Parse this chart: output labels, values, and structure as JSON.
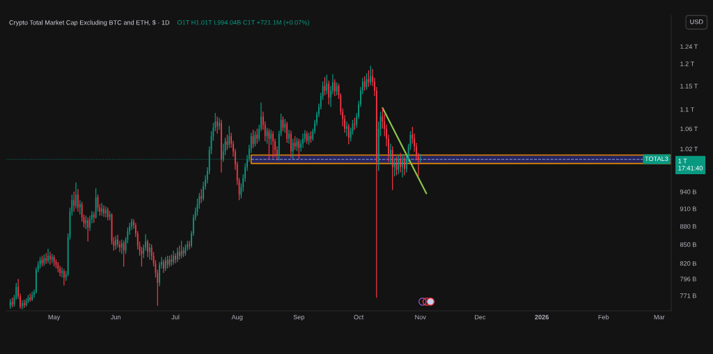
{
  "chart_data": {
    "type": "candlestick",
    "title": "Crypto Total Market Cap Excluding BTC and ETH, $ · 1D",
    "subtitle": "O1T H1.01T L994.04B C1T +721.1M (+0.07%)",
    "x": [
      "2025-04-09",
      "2025-04-10",
      "2025-04-11",
      "2025-04-12",
      "2025-04-13",
      "2025-04-14",
      "2025-04-15",
      "2025-04-16",
      "2025-04-17",
      "2025-04-18",
      "2025-04-19",
      "2025-04-20",
      "2025-04-21",
      "2025-04-22",
      "2025-04-23",
      "2025-04-24",
      "2025-04-25",
      "2025-04-26",
      "2025-04-27",
      "2025-04-28",
      "2025-04-29",
      "2025-04-30",
      "2025-05-01",
      "2025-05-02",
      "2025-05-03",
      "2025-05-04",
      "2025-05-05",
      "2025-05-06",
      "2025-05-07",
      "2025-05-08",
      "2025-05-09",
      "2025-05-10",
      "2025-05-11",
      "2025-05-12",
      "2025-05-13",
      "2025-05-14",
      "2025-05-15",
      "2025-05-16",
      "2025-05-17",
      "2025-05-18",
      "2025-05-19",
      "2025-05-20",
      "2025-05-21",
      "2025-05-22",
      "2025-05-23",
      "2025-05-24",
      "2025-05-25",
      "2025-05-26",
      "2025-05-27",
      "2025-05-28",
      "2025-05-29",
      "2025-05-30",
      "2025-05-31",
      "2025-06-01",
      "2025-06-02",
      "2025-06-03",
      "2025-06-04",
      "2025-06-05",
      "2025-06-06",
      "2025-06-07",
      "2025-06-08",
      "2025-06-09",
      "2025-06-10",
      "2025-06-11",
      "2025-06-12",
      "2025-06-13",
      "2025-06-14",
      "2025-06-15",
      "2025-06-16",
      "2025-06-17",
      "2025-06-18",
      "2025-06-19",
      "2025-06-20",
      "2025-06-21",
      "2025-06-22",
      "2025-06-23",
      "2025-06-24",
      "2025-06-25",
      "2025-06-26",
      "2025-06-27",
      "2025-06-28",
      "2025-06-29",
      "2025-06-30",
      "2025-07-01",
      "2025-07-02",
      "2025-07-03",
      "2025-07-04",
      "2025-07-05",
      "2025-07-06",
      "2025-07-07",
      "2025-07-08",
      "2025-07-09",
      "2025-07-10",
      "2025-07-11",
      "2025-07-12",
      "2025-07-13",
      "2025-07-14",
      "2025-07-15",
      "2025-07-16",
      "2025-07-17",
      "2025-07-18",
      "2025-07-19",
      "2025-07-20",
      "2025-07-21",
      "2025-07-22",
      "2025-07-23",
      "2025-07-24",
      "2025-07-25",
      "2025-07-26",
      "2025-07-27",
      "2025-07-28",
      "2025-07-29",
      "2025-07-30",
      "2025-07-31",
      "2025-08-01",
      "2025-08-02",
      "2025-08-03",
      "2025-08-04",
      "2025-08-05",
      "2025-08-06",
      "2025-08-07",
      "2025-08-08",
      "2025-08-09",
      "2025-08-10",
      "2025-08-11",
      "2025-08-12",
      "2025-08-13",
      "2025-08-14",
      "2025-08-15",
      "2025-08-16",
      "2025-08-17",
      "2025-08-18",
      "2025-08-19",
      "2025-08-20",
      "2025-08-21",
      "2025-08-22",
      "2025-08-23",
      "2025-08-24",
      "2025-08-25",
      "2025-08-26",
      "2025-08-27",
      "2025-08-28",
      "2025-08-29",
      "2025-08-30",
      "2025-08-31",
      "2025-09-01",
      "2025-09-02",
      "2025-09-03",
      "2025-09-04",
      "2025-09-05",
      "2025-09-06",
      "2025-09-07",
      "2025-09-08",
      "2025-09-09",
      "2025-09-10",
      "2025-09-11",
      "2025-09-12",
      "2025-09-13",
      "2025-09-14",
      "2025-09-15",
      "2025-09-16",
      "2025-09-17",
      "2025-09-18",
      "2025-09-19",
      "2025-09-20",
      "2025-09-21",
      "2025-09-22",
      "2025-09-23",
      "2025-09-24",
      "2025-09-25",
      "2025-09-26",
      "2025-09-27",
      "2025-09-28",
      "2025-09-29",
      "2025-09-30",
      "2025-10-01",
      "2025-10-02",
      "2025-10-03",
      "2025-10-04",
      "2025-10-05",
      "2025-10-06",
      "2025-10-07",
      "2025-10-08",
      "2025-10-09",
      "2025-10-10",
      "2025-10-11",
      "2025-10-12",
      "2025-10-13",
      "2025-10-14",
      "2025-10-15",
      "2025-10-16",
      "2025-10-17",
      "2025-10-18",
      "2025-10-19",
      "2025-10-20",
      "2025-10-21",
      "2025-10-22",
      "2025-10-23",
      "2025-10-24",
      "2025-10-25",
      "2025-10-26",
      "2025-10-27",
      "2025-10-28",
      "2025-10-29",
      "2025-10-30",
      "2025-10-31",
      "2025-11-01"
    ],
    "ohlc": [
      [
        756000000000.0,
        766000000000.0,
        752000000000.0,
        762000000000.0
      ],
      [
        762000000000.0,
        768000000000.0,
        754000000000.0,
        758000000000.0
      ],
      [
        758000000000.0,
        772000000000.0,
        755000000000.0,
        768000000000.0
      ],
      [
        768000000000.0,
        790000000000.0,
        765000000000.0,
        784000000000.0
      ],
      [
        784000000000.0,
        796000000000.0,
        766000000000.0,
        770000000000.0
      ],
      [
        770000000000.0,
        774000000000.0,
        752000000000.0,
        755000000000.0
      ],
      [
        755000000000.0,
        764000000000.0,
        751000000000.0,
        760000000000.0
      ],
      [
        760000000000.0,
        765000000000.0,
        753000000000.0,
        757000000000.0
      ],
      [
        757000000000.0,
        767000000000.0,
        755000000000.0,
        763000000000.0
      ],
      [
        763000000000.0,
        772000000000.0,
        760000000000.0,
        768000000000.0
      ],
      [
        768000000000.0,
        774000000000.0,
        762000000000.0,
        765000000000.0
      ],
      [
        765000000000.0,
        777000000000.0,
        763000000000.0,
        772000000000.0
      ],
      [
        772000000000.0,
        780000000000.0,
        768000000000.0,
        776000000000.0
      ],
      [
        776000000000.0,
        814000000000.0,
        774000000000.0,
        810000000000.0
      ],
      [
        810000000000.0,
        823000000000.0,
        806000000000.0,
        818000000000.0
      ],
      [
        818000000000.0,
        830000000000.0,
        812000000000.0,
        825000000000.0
      ],
      [
        825000000000.0,
        832000000000.0,
        815000000000.0,
        820000000000.0
      ],
      [
        820000000000.0,
        834000000000.0,
        816000000000.0,
        828000000000.0
      ],
      [
        828000000000.0,
        836000000000.0,
        819000000000.0,
        824000000000.0
      ],
      [
        824000000000.0,
        843000000000.0,
        820000000000.0,
        832000000000.0
      ],
      [
        832000000000.0,
        838000000000.0,
        818000000000.0,
        826000000000.0
      ],
      [
        826000000000.0,
        835000000000.0,
        820000000000.0,
        830000000000.0
      ],
      [
        830000000000.0,
        833000000000.0,
        815000000000.0,
        822000000000.0
      ],
      [
        822000000000.0,
        826000000000.0,
        812000000000.0,
        818000000000.0
      ],
      [
        818000000000.0,
        822000000000.0,
        806000000000.0,
        812000000000.0
      ],
      [
        812000000000.0,
        816000000000.0,
        800000000000.0,
        805000000000.0
      ],
      [
        805000000000.0,
        814000000000.0,
        798000000000.0,
        808000000000.0
      ],
      [
        808000000000.0,
        811000000000.0,
        786000000000.0,
        798000000000.0
      ],
      [
        798000000000.0,
        808000000000.0,
        793000000000.0,
        803000000000.0
      ],
      [
        803000000000.0,
        868000000000.0,
        800000000000.0,
        862000000000.0
      ],
      [
        862000000000.0,
        912000000000.0,
        858000000000.0,
        905000000000.0
      ],
      [
        905000000000.0,
        935000000000.0,
        898000000000.0,
        925000000000.0
      ],
      [
        925000000000.0,
        940000000000.0,
        905000000000.0,
        915000000000.0
      ],
      [
        915000000000.0,
        957000000000.0,
        910000000000.0,
        935000000000.0
      ],
      [
        935000000000.0,
        945000000000.0,
        905000000000.0,
        912000000000.0
      ],
      [
        912000000000.0,
        925000000000.0,
        900000000000.0,
        918000000000.0
      ],
      [
        918000000000.0,
        922000000000.0,
        888000000000.0,
        895000000000.0
      ],
      [
        895000000000.0,
        900000000000.0,
        878000000000.0,
        885000000000.0
      ],
      [
        885000000000.0,
        898000000000.0,
        875000000000.0,
        890000000000.0
      ],
      [
        890000000000.0,
        895000000000.0,
        855000000000.0,
        878000000000.0
      ],
      [
        878000000000.0,
        898000000000.0,
        872000000000.0,
        892000000000.0
      ],
      [
        892000000000.0,
        906000000000.0,
        885000000000.0,
        900000000000.0
      ],
      [
        900000000000.0,
        905000000000.0,
        886000000000.0,
        895000000000.0
      ],
      [
        895000000000.0,
        946000000000.0,
        893000000000.0,
        930000000000.0
      ],
      [
        930000000000.0,
        935000000000.0,
        905000000000.0,
        912000000000.0
      ],
      [
        912000000000.0,
        918000000000.0,
        898000000000.0,
        905000000000.0
      ],
      [
        905000000000.0,
        920000000000.0,
        898000000000.0,
        910000000000.0
      ],
      [
        910000000000.0,
        916000000000.0,
        896000000000.0,
        902000000000.0
      ],
      [
        902000000000.0,
        914000000000.0,
        895000000000.0,
        908000000000.0
      ],
      [
        908000000000.0,
        912000000000.0,
        890000000000.0,
        896000000000.0
      ],
      [
        896000000000.0,
        906000000000.0,
        890000000000.0,
        900000000000.0
      ],
      [
        900000000000.0,
        902000000000.0,
        850000000000.0,
        855000000000.0
      ],
      [
        855000000000.0,
        862000000000.0,
        840000000000.0,
        848000000000.0
      ],
      [
        848000000000.0,
        864000000000.0,
        842000000000.0,
        858000000000.0
      ],
      [
        858000000000.0,
        866000000000.0,
        845000000000.0,
        850000000000.0
      ],
      [
        850000000000.0,
        856000000000.0,
        838000000000.0,
        845000000000.0
      ],
      [
        845000000000.0,
        858000000000.0,
        835000000000.0,
        852000000000.0
      ],
      [
        852000000000.0,
        856000000000.0,
        815000000000.0,
        840000000000.0
      ],
      [
        840000000000.0,
        862000000000.0,
        835000000000.0,
        858000000000.0
      ],
      [
        858000000000.0,
        878000000000.0,
        852000000000.0,
        872000000000.0
      ],
      [
        872000000000.0,
        886000000000.0,
        866000000000.0,
        880000000000.0
      ],
      [
        880000000000.0,
        893000000000.0,
        874000000000.0,
        888000000000.0
      ],
      [
        888000000000.0,
        892000000000.0,
        876000000000.0,
        882000000000.0
      ],
      [
        882000000000.0,
        886000000000.0,
        862000000000.0,
        868000000000.0
      ],
      [
        868000000000.0,
        872000000000.0,
        842000000000.0,
        848000000000.0
      ],
      [
        848000000000.0,
        855000000000.0,
        832000000000.0,
        840000000000.0
      ],
      [
        840000000000.0,
        846000000000.0,
        815000000000.0,
        835000000000.0
      ],
      [
        835000000000.0,
        850000000000.0,
        828000000000.0,
        845000000000.0
      ],
      [
        845000000000.0,
        867000000000.0,
        840000000000.0,
        855000000000.0
      ],
      [
        855000000000.0,
        858000000000.0,
        830000000000.0,
        838000000000.0
      ],
      [
        838000000000.0,
        852000000000.0,
        826000000000.0,
        845000000000.0
      ],
      [
        845000000000.0,
        850000000000.0,
        825000000000.0,
        832000000000.0
      ],
      [
        832000000000.0,
        838000000000.0,
        815000000000.0,
        820000000000.0
      ],
      [
        820000000000.0,
        825000000000.0,
        798000000000.0,
        805000000000.0
      ],
      [
        805000000000.0,
        810000000000.0,
        756000000000.0,
        790000000000.0
      ],
      [
        790000000000.0,
        822000000000.0,
        785000000000.0,
        818000000000.0
      ],
      [
        818000000000.0,
        830000000000.0,
        812000000000.0,
        822000000000.0
      ],
      [
        822000000000.0,
        826000000000.0,
        805000000000.0,
        812000000000.0
      ],
      [
        812000000000.0,
        830000000000.0,
        808000000000.0,
        825000000000.0
      ],
      [
        825000000000.0,
        832000000000.0,
        812000000000.0,
        818000000000.0
      ],
      [
        818000000000.0,
        832000000000.0,
        814000000000.0,
        826000000000.0
      ],
      [
        826000000000.0,
        834000000000.0,
        816000000000.0,
        822000000000.0
      ],
      [
        822000000000.0,
        840000000000.0,
        818000000000.0,
        832000000000.0
      ],
      [
        832000000000.0,
        836000000000.0,
        820000000000.0,
        826000000000.0
      ],
      [
        826000000000.0,
        845000000000.0,
        822000000000.0,
        838000000000.0
      ],
      [
        838000000000.0,
        848000000000.0,
        826000000000.0,
        832000000000.0
      ],
      [
        832000000000.0,
        856000000000.0,
        828000000000.0,
        840000000000.0
      ],
      [
        840000000000.0,
        846000000000.0,
        830000000000.0,
        836000000000.0
      ],
      [
        836000000000.0,
        850000000000.0,
        832000000000.0,
        845000000000.0
      ],
      [
        845000000000.0,
        856000000000.0,
        840000000000.0,
        850000000000.0
      ],
      [
        850000000000.0,
        856000000000.0,
        842000000000.0,
        848000000000.0
      ],
      [
        848000000000.0,
        872000000000.0,
        845000000000.0,
        868000000000.0
      ],
      [
        868000000000.0,
        900000000000.0,
        864000000000.0,
        895000000000.0
      ],
      [
        895000000000.0,
        912000000000.0,
        890000000000.0,
        905000000000.0
      ],
      [
        905000000000.0,
        928000000000.0,
        898000000000.0,
        918000000000.0
      ],
      [
        918000000000.0,
        938000000000.0,
        910000000000.0,
        932000000000.0
      ],
      [
        932000000000.0,
        945000000000.0,
        920000000000.0,
        928000000000.0
      ],
      [
        928000000000.0,
        958000000000.0,
        924000000000.0,
        950000000000.0
      ],
      [
        950000000000.0,
        970000000000.0,
        944000000000.0,
        962000000000.0
      ],
      [
        962000000000.0,
        985000000000.0,
        955000000000.0,
        978000000000.0
      ],
      [
        978000000000.0,
        1025000000000.0,
        972000000000.0,
        1018000000000.0
      ],
      [
        1018000000000.0,
        1055000000000.0,
        1010000000000.0,
        1045000000000.0
      ],
      [
        1045000000000.0,
        1072000000000.0,
        1036000000000.0,
        1062000000000.0
      ],
      [
        1062000000000.0,
        1092000000000.0,
        1055000000000.0,
        1075000000000.0
      ],
      [
        1075000000000.0,
        1085000000000.0,
        1050000000000.0,
        1065000000000.0
      ],
      [
        1065000000000.0,
        1082000000000.0,
        1058000000000.0,
        1072000000000.0
      ],
      [
        1072000000000.0,
        1078000000000.0,
        975000000000.0,
        1000000000000.0
      ],
      [
        1000000000000.0,
        1030000000000.0,
        995000000000.0,
        1015000000000.0
      ],
      [
        1015000000000.0,
        1042000000000.0,
        1008000000000.0,
        1035000000000.0
      ],
      [
        1035000000000.0,
        1048000000000.0,
        1018000000000.0,
        1028000000000.0
      ],
      [
        1028000000000.0,
        1066000000000.0,
        1022000000000.0,
        1045000000000.0
      ],
      [
        1045000000000.0,
        1052000000000.0,
        1022000000000.0,
        1030000000000.0
      ],
      [
        1030000000000.0,
        1036000000000.0,
        1005000000000.0,
        1015000000000.0
      ],
      [
        1015000000000.0,
        1020000000000.0,
        980000000000.0,
        990000000000.0
      ],
      [
        990000000000.0,
        995000000000.0,
        952000000000.0,
        960000000000.0
      ],
      [
        960000000000.0,
        965000000000.0,
        925000000000.0,
        935000000000.0
      ],
      [
        935000000000.0,
        955000000000.0,
        928000000000.0,
        948000000000.0
      ],
      [
        948000000000.0,
        972000000000.0,
        940000000000.0,
        965000000000.0
      ],
      [
        965000000000.0,
        992000000000.0,
        958000000000.0,
        985000000000.0
      ],
      [
        985000000000.0,
        1008000000000.0,
        978000000000.0,
        1000000000000.0
      ],
      [
        1000000000000.0,
        1028000000000.0,
        995000000000.0,
        1020000000000.0
      ],
      [
        1020000000000.0,
        1052000000000.0,
        1012000000000.0,
        1045000000000.0
      ],
      [
        1045000000000.0,
        1058000000000.0,
        1022000000000.0,
        1030000000000.0
      ],
      [
        1030000000000.0,
        1055000000000.0,
        1025000000000.0,
        1048000000000.0
      ],
      [
        1048000000000.0,
        1060000000000.0,
        1030000000000.0,
        1040000000000.0
      ],
      [
        1040000000000.0,
        1068000000000.0,
        1035000000000.0,
        1060000000000.0
      ],
      [
        1060000000000.0,
        1114000000000.0,
        1055000000000.0,
        1085000000000.0
      ],
      [
        1085000000000.0,
        1095000000000.0,
        1058000000000.0,
        1068000000000.0
      ],
      [
        1068000000000.0,
        1075000000000.0,
        1035000000000.0,
        1045000000000.0
      ],
      [
        1045000000000.0,
        1062000000000.0,
        1030000000000.0,
        1055000000000.0
      ],
      [
        1055000000000.0,
        1060000000000.0,
        1000000000000.0,
        1040000000000.0
      ],
      [
        1040000000000.0,
        1058000000000.0,
        1028000000000.0,
        1050000000000.0
      ],
      [
        1050000000000.0,
        1055000000000.0,
        1002000000000.0,
        1035000000000.0
      ],
      [
        1035000000000.0,
        1040000000000.0,
        1005000000000.0,
        1018000000000.0
      ],
      [
        1018000000000.0,
        1025000000000.0,
        998000000000.0,
        1008000000000.0
      ],
      [
        1008000000000.0,
        1056000000000.0,
        998000000000.0,
        1050000000000.0
      ],
      [
        1050000000000.0,
        1091000000000.0,
        1045000000000.0,
        1078000000000.0
      ],
      [
        1078000000000.0,
        1085000000000.0,
        1055000000000.0,
        1062000000000.0
      ],
      [
        1062000000000.0,
        1080000000000.0,
        1052000000000.0,
        1070000000000.0
      ],
      [
        1070000000000.0,
        1074000000000.0,
        1032000000000.0,
        1040000000000.0
      ],
      [
        1040000000000.0,
        1058000000000.0,
        1030000000000.0,
        1050000000000.0
      ],
      [
        1050000000000.0,
        1056000000000.0,
        1003000000000.0,
        1015000000000.0
      ],
      [
        1015000000000.0,
        1040000000000.0,
        1001000000000.0,
        1032000000000.0
      ],
      [
        1032000000000.0,
        1045000000000.0,
        1018000000000.0,
        1025000000000.0
      ],
      [
        1025000000000.0,
        1042000000000.0,
        1016000000000.0,
        1035000000000.0
      ],
      [
        1035000000000.0,
        1040000000000.0,
        1001000000000.0,
        1022000000000.0
      ],
      [
        1022000000000.0,
        1038000000000.0,
        1015000000000.0,
        1030000000000.0
      ],
      [
        1030000000000.0,
        1050000000000.0,
        1022000000000.0,
        1040000000000.0
      ],
      [
        1040000000000.0,
        1057000000000.0,
        1033000000000.0,
        1050000000000.0
      ],
      [
        1050000000000.0,
        1055000000000.0,
        1030000000000.0,
        1036000000000.0
      ],
      [
        1036000000000.0,
        1052000000000.0,
        1028000000000.0,
        1045000000000.0
      ],
      [
        1045000000000.0,
        1055000000000.0,
        1032000000000.0,
        1040000000000.0
      ],
      [
        1040000000000.0,
        1060000000000.0,
        1036000000000.0,
        1055000000000.0
      ],
      [
        1055000000000.0,
        1078000000000.0,
        1050000000000.0,
        1072000000000.0
      ],
      [
        1072000000000.0,
        1095000000000.0,
        1066000000000.0,
        1090000000000.0
      ],
      [
        1090000000000.0,
        1112000000000.0,
        1084000000000.0,
        1105000000000.0
      ],
      [
        1105000000000.0,
        1135000000000.0,
        1100000000000.0,
        1128000000000.0
      ],
      [
        1128000000000.0,
        1160000000000.0,
        1120000000000.0,
        1150000000000.0
      ],
      [
        1150000000000.0,
        1170000000000.0,
        1130000000000.0,
        1140000000000.0
      ],
      [
        1140000000000.0,
        1175000000000.0,
        1132000000000.0,
        1155000000000.0
      ],
      [
        1155000000000.0,
        1162000000000.0,
        1110000000000.0,
        1125000000000.0
      ],
      [
        1125000000000.0,
        1150000000000.0,
        1105000000000.0,
        1140000000000.0
      ],
      [
        1140000000000.0,
        1176000000000.0,
        1132000000000.0,
        1158000000000.0
      ],
      [
        1158000000000.0,
        1165000000000.0,
        1128000000000.0,
        1138000000000.0
      ],
      [
        1138000000000.0,
        1158000000000.0,
        1130000000000.0,
        1150000000000.0
      ],
      [
        1150000000000.0,
        1155000000000.0,
        1122000000000.0,
        1130000000000.0
      ],
      [
        1130000000000.0,
        1134000000000.0,
        1088000000000.0,
        1095000000000.0
      ],
      [
        1095000000000.0,
        1102000000000.0,
        1065000000000.0,
        1080000000000.0
      ],
      [
        1080000000000.0,
        1088000000000.0,
        1052000000000.0,
        1060000000000.0
      ],
      [
        1060000000000.0,
        1075000000000.0,
        1045000000000.0,
        1065000000000.0
      ],
      [
        1065000000000.0,
        1070000000000.0,
        1029000000000.0,
        1042000000000.0
      ],
      [
        1042000000000.0,
        1062000000000.0,
        1035000000000.0,
        1055000000000.0
      ],
      [
        1055000000000.0,
        1078000000000.0,
        1048000000000.0,
        1070000000000.0
      ],
      [
        1070000000000.0,
        1082000000000.0,
        1058000000000.0,
        1068000000000.0
      ],
      [
        1068000000000.0,
        1092000000000.0,
        1062000000000.0,
        1085000000000.0
      ],
      [
        1085000000000.0,
        1118000000000.0,
        1080000000000.0,
        1110000000000.0
      ],
      [
        1110000000000.0,
        1148000000000.0,
        1105000000000.0,
        1140000000000.0
      ],
      [
        1140000000000.0,
        1168000000000.0,
        1132000000000.0,
        1160000000000.0
      ],
      [
        1160000000000.0,
        1172000000000.0,
        1140000000000.0,
        1148000000000.0
      ],
      [
        1148000000000.0,
        1178000000000.0,
        1142000000000.0,
        1165000000000.0
      ],
      [
        1165000000000.0,
        1185000000000.0,
        1148000000000.0,
        1158000000000.0
      ],
      [
        1158000000000.0,
        1195000000000.0,
        1152000000000.0,
        1172000000000.0
      ],
      [
        1172000000000.0,
        1188000000000.0,
        1150000000000.0,
        1160000000000.0
      ],
      [
        1160000000000.0,
        1168000000000.0,
        1128000000000.0,
        1140000000000.0
      ],
      [
        1140000000000.0,
        1148000000000.0,
        768000000000.0,
        995000000000.0
      ],
      [
        995000000000.0,
        1075000000000.0,
        978000000000.0,
        1060000000000.0
      ],
      [
        1060000000000.0,
        1095000000000.0,
        1045000000000.0,
        1085000000000.0
      ],
      [
        1085000000000.0,
        1103000000000.0,
        1060000000000.0,
        1075000000000.0
      ],
      [
        1075000000000.0,
        1090000000000.0,
        1045000000000.0,
        1060000000000.0
      ],
      [
        1060000000000.0,
        1068000000000.0,
        1025000000000.0,
        1040000000000.0
      ],
      [
        1040000000000.0,
        1048000000000.0,
        995000000000.0,
        1010000000000.0
      ],
      [
        1010000000000.0,
        1030000000000.0,
        990000000000.0,
        1018000000000.0
      ],
      [
        1018000000000.0,
        1025000000000.0,
        943000000000.0,
        985000000000.0
      ],
      [
        985000000000.0,
        1002000000000.0,
        968000000000.0,
        992000000000.0
      ],
      [
        992000000000.0,
        1005000000000.0,
        970000000000.0,
        980000000000.0
      ],
      [
        980000000000.0,
        1008000000000.0,
        972000000000.0,
        1000000000000.0
      ],
      [
        1000000000000.0,
        1012000000000.0,
        975000000000.0,
        985000000000.0
      ],
      [
        985000000000.0,
        1010000000000.0,
        966000000000.0,
        998000000000.0
      ],
      [
        998000000000.0,
        1005000000000.0,
        970000000000.0,
        982000000000.0
      ],
      [
        982000000000.0,
        1008000000000.0,
        975000000000.0,
        1000000000000.0
      ],
      [
        1000000000000.0,
        1030000000000.0,
        995000000000.0,
        1025000000000.0
      ],
      [
        1025000000000.0,
        1055000000000.0,
        1018000000000.0,
        1048000000000.0
      ],
      [
        1048000000000.0,
        1064000000000.0,
        1030000000000.0,
        1040000000000.0
      ],
      [
        1040000000000.0,
        1050000000000.0,
        1015000000000.0,
        1025000000000.0
      ],
      [
        1025000000000.0,
        1032000000000.0,
        998000000000.0,
        1005000000000.0
      ],
      [
        1005000000000.0,
        1012000000000.0,
        968000000000.0,
        999000000000.0
      ],
      [
        999000000000.0,
        1010000000000.0,
        994040000000.0,
        1000000000000.0
      ]
    ],
    "colors": [
      "#089981",
      "#f23645",
      "#089981",
      "#089981",
      "#f23645",
      "#f23645",
      "#089981",
      "#f23645",
      "#089981",
      "#089981",
      "#f23645",
      "#089981",
      "#089981",
      "#089981",
      "#089981",
      "#089981",
      "#f23645",
      "#089981",
      "#f23645",
      "#089981",
      "#f23645",
      "#089981",
      "#f23645",
      "#f23645",
      "#f23645",
      "#f23645",
      "#089981",
      "#f23645",
      "#089981",
      "#089981",
      "#089981",
      "#089981",
      "#f23645",
      "#089981",
      "#f23645",
      "#089981",
      "#f23645",
      "#f23645",
      "#089981",
      "#f23645",
      "#089981",
      "#089981",
      "#f23645",
      "#089981",
      "#f23645",
      "#f23645",
      "#089981",
      "#f23645",
      "#089981",
      "#f23645",
      "#089981",
      "#f23645",
      "#f23645",
      "#089981",
      "#f23645",
      "#f23645",
      "#089981",
      "#f23645",
      "#089981",
      "#089981",
      "#089981",
      "#089981",
      "#f23645",
      "#f23645",
      "#f23645",
      "#f23645",
      "#f23645",
      "#089981",
      "#089981",
      "#f23645",
      "#089981",
      "#f23645",
      "#f23645",
      "#f23645",
      "#f23645",
      "#089981",
      "#089981",
      "#f23645",
      "#089981",
      "#f23645",
      "#089981",
      "#f23645",
      "#089981",
      "#f23645",
      "#089981",
      "#f23645",
      "#089981",
      "#f23645",
      "#089981",
      "#089981",
      "#f23645",
      "#089981",
      "#089981",
      "#089981",
      "#089981",
      "#089981",
      "#f23645",
      "#089981",
      "#089981",
      "#089981",
      "#089981",
      "#089981",
      "#089981",
      "#089981",
      "#f23645",
      "#089981",
      "#f23645",
      "#089981",
      "#089981",
      "#f23645",
      "#089981",
      "#f23645",
      "#f23645",
      "#f23645",
      "#f23645",
      "#f23645",
      "#089981",
      "#089981",
      "#089981",
      "#089981",
      "#089981",
      "#089981",
      "#f23645",
      "#089981",
      "#f23645",
      "#089981",
      "#089981",
      "#f23645",
      "#f23645",
      "#089981",
      "#f23645",
      "#089981",
      "#f23645",
      "#f23645",
      "#f23645",
      "#089981",
      "#089981",
      "#f23645",
      "#089981",
      "#f23645",
      "#089981",
      "#f23645",
      "#089981",
      "#f23645",
      "#089981",
      "#f23645",
      "#089981",
      "#089981",
      "#089981",
      "#f23645",
      "#089981",
      "#f23645",
      "#089981",
      "#089981",
      "#089981",
      "#089981",
      "#089981",
      "#089981",
      "#f23645",
      "#089981",
      "#f23645",
      "#089981",
      "#089981",
      "#f23645",
      "#089981",
      "#f23645",
      "#f23645",
      "#f23645",
      "#f23645",
      "#089981",
      "#f23645",
      "#089981",
      "#089981",
      "#f23645",
      "#089981",
      "#089981",
      "#089981",
      "#089981",
      "#f23645",
      "#089981",
      "#f23645",
      "#089981",
      "#f23645",
      "#f23645",
      "#f23645",
      "#089981",
      "#089981",
      "#f23645",
      "#f23645",
      "#f23645",
      "#f23645",
      "#089981",
      "#f23645",
      "#089981",
      "#f23645",
      "#089981",
      "#f23645",
      "#089981",
      "#f23645",
      "#089981",
      "#089981",
      "#089981",
      "#f23645",
      "#f23645",
      "#f23645",
      "#f23645",
      "#089981"
    ],
    "series": [
      {
        "type": "line",
        "x": [
          "2025-10-13",
          "2025-11-04"
        ],
        "values": [
          1103000000000.0,
          937000000000.0
        ],
        "color": "#8bc34a"
      },
      {
        "type": "line",
        "x": [
          "2025-08-08",
          "2026-03-07"
        ],
        "values": [
          1000000000000.0,
          1000000000000.0
        ],
        "lower": [
          992000000000.0,
          992000000000.0
        ],
        "upper": [
          1008000000000.0,
          1008000000000.0
        ],
        "color": "#7986cb",
        "line_style": "dashed"
      }
    ],
    "ref_lines": [
      {
        "axis": "y",
        "value": 1000000000000.0,
        "label": "1 T\n17:41:40",
        "color": "#089981",
        "line_style": "dotted"
      }
    ],
    "annotations": [
      "USD",
      {
        "text": "TOTAL3",
        "x": "2026-03-07",
        "y": 1000000000000.0
      }
    ],
    "log": "y",
    "xlim": [
      "2025-04-07",
      "2026-03-07"
    ],
    "xticks": [
      {
        "value": "2025-05-01",
        "label": "May"
      },
      {
        "value": "2025-06-01",
        "label": "Jun"
      },
      {
        "value": "2025-07-01",
        "label": "Jul"
      },
      {
        "value": "2025-08-01",
        "label": "Aug"
      },
      {
        "value": "2025-09-01",
        "label": "Sep"
      },
      {
        "value": "2025-10-01",
        "label": "Oct"
      },
      {
        "value": "2025-11-01",
        "label": "Nov"
      },
      {
        "value": "2025-12-01",
        "label": "Dec"
      },
      {
        "value": "2026-01-01",
        "label": "2026"
      },
      {
        "value": "2026-02-01",
        "label": "Feb"
      },
      {
        "value": "2026-03-01",
        "label": "Mar"
      }
    ],
    "ylim": [
      749000000000.0,
      1316000000000.0
    ],
    "yticks": [
      {
        "value": 771000000000.0,
        "label": "771 B"
      },
      {
        "value": 796000000000.0,
        "label": "796 B"
      },
      {
        "value": 820000000000.0,
        "label": "820 B"
      },
      {
        "value": 850000000000.0,
        "label": "850 B"
      },
      {
        "value": 880000000000.0,
        "label": "880 B"
      },
      {
        "value": 910000000000.0,
        "label": "910 B"
      },
      {
        "value": 940000000000.0,
        "label": "940 B"
      },
      {
        "value": 1020000000000.0,
        "label": "1.02 T"
      },
      {
        "value": 1060000000000.0,
        "label": "1.06 T"
      },
      {
        "value": 1100000000000.0,
        "label": "1.1 T"
      },
      {
        "value": 1150000000000.0,
        "label": "1.15 T"
      },
      {
        "value": 1200000000000.0,
        "label": "1.2 T"
      },
      {
        "value": 1240000000000.0,
        "label": "1.24 T"
      }
    ]
  }
}
